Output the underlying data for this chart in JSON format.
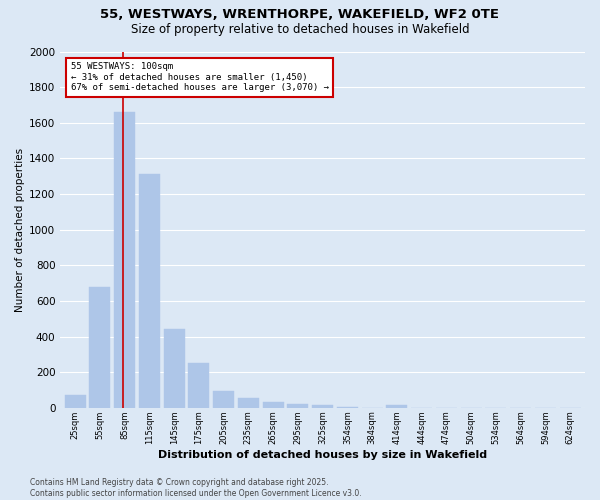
{
  "title_line1": "55, WESTWAYS, WRENTHORPE, WAKEFIELD, WF2 0TE",
  "title_line2": "Size of property relative to detached houses in Wakefield",
  "xlabel": "Distribution of detached houses by size in Wakefield",
  "ylabel": "Number of detached properties",
  "categories": [
    "25sqm",
    "55sqm",
    "85sqm",
    "115sqm",
    "145sqm",
    "175sqm",
    "205sqm",
    "235sqm",
    "265sqm",
    "295sqm",
    "325sqm",
    "354sqm",
    "384sqm",
    "414sqm",
    "444sqm",
    "474sqm",
    "504sqm",
    "534sqm",
    "564sqm",
    "594sqm",
    "624sqm"
  ],
  "values": [
    70,
    680,
    1660,
    1310,
    440,
    250,
    95,
    55,
    30,
    20,
    15,
    5,
    0,
    15,
    0,
    0,
    0,
    0,
    0,
    0,
    0
  ],
  "bar_color": "#aec6e8",
  "bar_edge_color": "#aec6e8",
  "highlight_bar_index": 2,
  "highlight_line_color": "#cc0000",
  "annotation_text": "55 WESTWAYS: 100sqm\n← 31% of detached houses are smaller (1,450)\n67% of semi-detached houses are larger (3,070) →",
  "annotation_box_color": "#ffffff",
  "annotation_box_edge": "#cc0000",
  "ylim": [
    0,
    2000
  ],
  "yticks": [
    0,
    200,
    400,
    600,
    800,
    1000,
    1200,
    1400,
    1600,
    1800,
    2000
  ],
  "background_color": "#dce8f5",
  "grid_color": "#ffffff",
  "footnote": "Contains HM Land Registry data © Crown copyright and database right 2025.\nContains public sector information licensed under the Open Government Licence v3.0."
}
